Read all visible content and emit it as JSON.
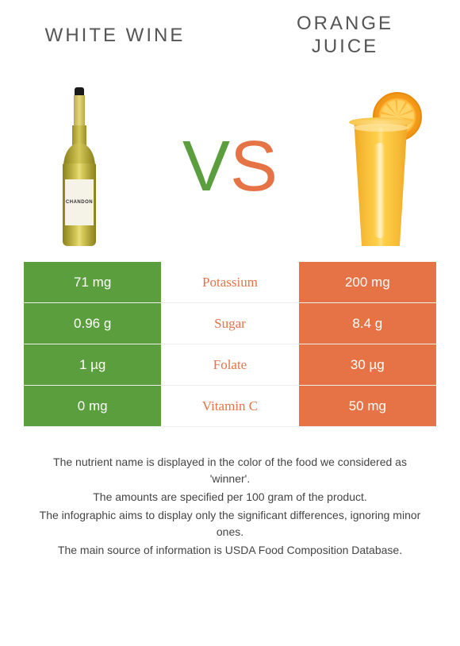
{
  "header": {
    "left_title": "WHITE WINE",
    "right_title_line1": "ORANGE",
    "right_title_line2": "JUICE"
  },
  "vs": {
    "v": "V",
    "s": "S"
  },
  "wine_label": {
    "brand": "CHANDON"
  },
  "colors": {
    "left": "#5a9e3e",
    "right": "#e67346",
    "background": "#ffffff"
  },
  "nutrients": [
    {
      "name": "Potassium",
      "left_value": "71 mg",
      "right_value": "200 mg",
      "winner": "right"
    },
    {
      "name": "Sugar",
      "left_value": "0.96 g",
      "right_value": "8.4 g",
      "winner": "right"
    },
    {
      "name": "Folate",
      "left_value": "1 µg",
      "right_value": "30 µg",
      "winner": "right"
    },
    {
      "name": "Vitamin C",
      "left_value": "0 mg",
      "right_value": "50 mg",
      "winner": "right"
    }
  ],
  "footnotes": [
    "The nutrient name is displayed in the color of the food we considered as 'winner'.",
    "The amounts are specified per 100 gram of the product.",
    "The infographic aims to display only the significant differences, ignoring minor ones.",
    "The main source of information is USDA Food Composition Database."
  ]
}
